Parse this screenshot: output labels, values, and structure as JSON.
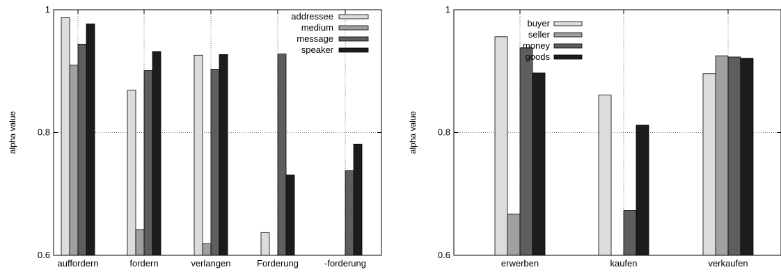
{
  "chart_data": [
    {
      "type": "bar",
      "ylabel": "alpha value",
      "ylim": [
        0.6,
        1.0
      ],
      "yticks": [
        "0.6",
        "0.8",
        "1"
      ],
      "grid": true,
      "legend_position": "top-right",
      "categories": [
        "auffordern",
        "fordern",
        "verlangen",
        "Forderung",
        "-forderung"
      ],
      "series": [
        {
          "name": "addressee",
          "color": "#dcdcdc",
          "values": [
            0.987,
            0.869,
            0.926,
            0.637,
            null
          ]
        },
        {
          "name": "medium",
          "color": "#a0a0a0",
          "values": [
            0.91,
            0.642,
            0.619,
            null,
            null
          ]
        },
        {
          "name": "message",
          "color": "#5e5e5e",
          "values": [
            0.944,
            0.901,
            0.903,
            0.928,
            0.738
          ]
        },
        {
          "name": "speaker",
          "color": "#1c1c1c",
          "values": [
            0.977,
            0.932,
            0.927,
            0.731,
            0.781
          ]
        }
      ]
    },
    {
      "type": "bar",
      "ylabel": "alpha value",
      "ylim": [
        0.6,
        1.0
      ],
      "yticks": [
        "0.6",
        "0.8",
        "1"
      ],
      "grid": true,
      "legend_position": "top-center",
      "categories": [
        "erwerben",
        "kaufen",
        "verkaufen"
      ],
      "series": [
        {
          "name": "buyer",
          "color": "#dcdcdc",
          "values": [
            0.956,
            0.861,
            0.896
          ]
        },
        {
          "name": "seller",
          "color": "#a0a0a0",
          "values": [
            0.667,
            null,
            0.925
          ]
        },
        {
          "name": "money",
          "color": "#5e5e5e",
          "values": [
            0.938,
            0.673,
            0.923
          ]
        },
        {
          "name": "goods",
          "color": "#1c1c1c",
          "values": [
            0.897,
            0.812,
            0.921
          ]
        }
      ]
    }
  ]
}
